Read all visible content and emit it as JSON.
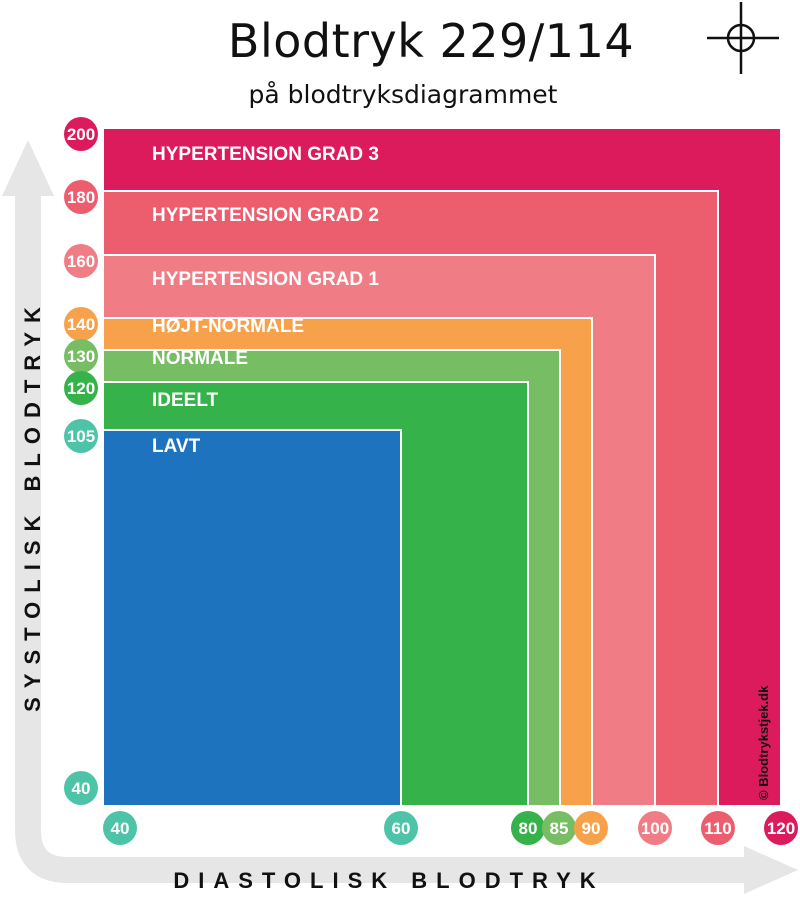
{
  "title": "Blodtryk 229/114",
  "subtitle": "på blodtryksdiagrammet",
  "credit": "© Blodtrykstjek.dk",
  "icons": {
    "crosshair": "crosshair-icon"
  },
  "chart_data": {
    "type": "area",
    "xlabel": "DIASTOLISK BLODTRYK",
    "ylabel": "SYSTOLISK BLODTRYK",
    "xlim": [
      40,
      120
    ],
    "ylim": [
      40,
      200
    ],
    "x_ticks": [
      {
        "value": 40,
        "label": "40",
        "color": "#4dc3a8"
      },
      {
        "value": 60,
        "label": "60",
        "color": "#4dc3a8"
      },
      {
        "value": 80,
        "label": "80",
        "color": "#36b24a"
      },
      {
        "value": 85,
        "label": "85",
        "color": "#76bd63"
      },
      {
        "value": 90,
        "label": "90",
        "color": "#f7a24a"
      },
      {
        "value": 100,
        "label": "100",
        "color": "#f07c86"
      },
      {
        "value": 110,
        "label": "110",
        "color": "#ec5d6d"
      },
      {
        "value": 120,
        "label": "120",
        "color": "#dc1b5c"
      }
    ],
    "y_ticks": [
      {
        "value": 200,
        "label": "200",
        "color": "#dc1b5c"
      },
      {
        "value": 180,
        "label": "180",
        "color": "#ec5d6d"
      },
      {
        "value": 160,
        "label": "160",
        "color": "#f07c86"
      },
      {
        "value": 140,
        "label": "140",
        "color": "#f7a24a"
      },
      {
        "value": 130,
        "label": "130",
        "color": "#76bd63"
      },
      {
        "value": 120,
        "label": "120",
        "color": "#36b24a"
      },
      {
        "value": 105,
        "label": "105",
        "color": "#4dc3a8"
      },
      {
        "value": 40,
        "label": "40",
        "color": "#4dc3a8"
      }
    ],
    "zones": [
      {
        "name": "HYPERTENSION GRAD 3",
        "max_diastolic": 120,
        "max_systolic": 200,
        "color": "#dc1b5c"
      },
      {
        "name": "HYPERTENSION GRAD 2",
        "max_diastolic": 110,
        "max_systolic": 180,
        "color": "#ec5d6d"
      },
      {
        "name": "HYPERTENSION GRAD 1",
        "max_diastolic": 100,
        "max_systolic": 160,
        "color": "#f07c86"
      },
      {
        "name": "HØJT-NORMALE",
        "max_diastolic": 90,
        "max_systolic": 140,
        "color": "#f7a24a"
      },
      {
        "name": "NORMALE",
        "max_diastolic": 85,
        "max_systolic": 130,
        "color": "#76bd63"
      },
      {
        "name": "IDEELT",
        "max_diastolic": 80,
        "max_systolic": 120,
        "color": "#36b24a"
      },
      {
        "name": "LAVT",
        "max_diastolic": 60,
        "max_systolic": 105,
        "color": "#1e73be"
      }
    ]
  }
}
